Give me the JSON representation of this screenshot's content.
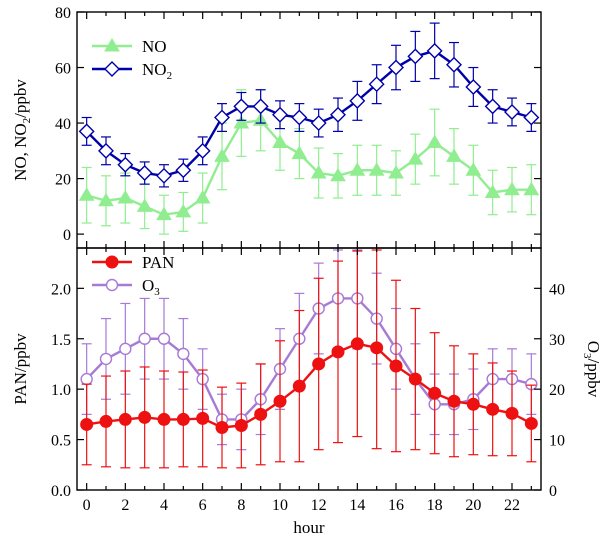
{
  "chart_data": [
    {
      "type": "line",
      "panel": "top",
      "ylabel": "NO, NO2/ppbv",
      "ylabel_parts": [
        "NO, NO",
        "2",
        "/ppbv"
      ],
      "ylim": [
        -5,
        80
      ],
      "yticks": [
        0,
        20,
        40,
        60,
        80
      ],
      "xlim": [
        -0.5,
        23.5
      ],
      "grid": false,
      "legend_position": "top-left",
      "x": [
        0,
        1,
        2,
        3,
        4,
        5,
        6,
        7,
        8,
        9,
        10,
        11,
        12,
        13,
        14,
        15,
        16,
        17,
        18,
        19,
        20,
        21,
        22,
        23
      ],
      "series": [
        {
          "name": "NO",
          "name_parts": [
            "NO",
            ""
          ],
          "color": "#90ee90",
          "marker": "triangle",
          "values": [
            14,
            12,
            13,
            10,
            7,
            8,
            13,
            28,
            40,
            41,
            33,
            29,
            22,
            21,
            23,
            23,
            22,
            27,
            33,
            28,
            23,
            15,
            16,
            16
          ],
          "error": [
            10,
            9,
            9,
            8,
            7,
            7,
            9,
            12,
            12,
            11,
            10,
            9,
            9,
            8,
            9,
            9,
            8,
            9,
            12,
            10,
            9,
            8,
            8,
            9
          ]
        },
        {
          "name": "NO2",
          "name_parts": [
            "NO",
            "2"
          ],
          "color": "#0000aa",
          "marker": "diamond",
          "values": [
            37,
            30,
            25,
            22,
            21,
            23,
            30,
            42,
            46,
            46,
            43,
            42,
            40,
            43,
            48,
            54,
            60,
            64,
            66,
            61,
            53,
            46,
            44,
            42
          ],
          "error": [
            5,
            5,
            4,
            4,
            4,
            4,
            5,
            5,
            5,
            6,
            5,
            5,
            5,
            6,
            7,
            7,
            8,
            9,
            10,
            8,
            7,
            6,
            5,
            5
          ]
        }
      ]
    },
    {
      "type": "line",
      "panel": "bottom",
      "xlabel": "hour",
      "ylabel": "PAN/ppbv",
      "ylabel_right": "O3/ppbv",
      "ylabel_right_parts": [
        "O",
        "3",
        "/ppbv"
      ],
      "ylim": [
        0,
        2.4
      ],
      "yticks": [
        0.0,
        0.5,
        1.0,
        1.5,
        2.0
      ],
      "ylim_right": [
        0,
        48
      ],
      "yticks_right": [
        0,
        10,
        20,
        30,
        40
      ],
      "xlim": [
        -0.5,
        23.5
      ],
      "xticks": [
        0,
        2,
        4,
        6,
        8,
        10,
        12,
        14,
        16,
        18,
        20,
        22
      ],
      "grid": false,
      "legend_position": "top-left",
      "x": [
        0,
        1,
        2,
        3,
        4,
        5,
        6,
        7,
        8,
        9,
        10,
        11,
        12,
        13,
        14,
        15,
        16,
        17,
        18,
        19,
        20,
        21,
        22,
        23
      ],
      "series": [
        {
          "name": "PAN",
          "name_parts": [
            "PAN",
            ""
          ],
          "axis": "left",
          "color": "#ee1111",
          "marker": "filled-circle",
          "values": [
            0.65,
            0.68,
            0.7,
            0.72,
            0.7,
            0.7,
            0.71,
            0.62,
            0.64,
            0.75,
            0.88,
            1.03,
            1.25,
            1.37,
            1.45,
            1.41,
            1.23,
            1.1,
            0.96,
            0.88,
            0.85,
            0.8,
            0.76,
            0.66
          ],
          "error": [
            0.4,
            0.45,
            0.48,
            0.5,
            0.48,
            0.47,
            0.48,
            0.4,
            0.42,
            0.5,
            0.6,
            0.75,
            0.85,
            0.9,
            0.92,
            1.0,
            0.85,
            0.7,
            0.6,
            0.55,
            0.5,
            0.46,
            0.42,
            0.38
          ]
        },
        {
          "name": "O3",
          "name_parts": [
            "O",
            "3"
          ],
          "axis": "right",
          "color": "#a77ad6",
          "marker": "open-circle",
          "values": [
            22,
            26,
            28,
            30,
            30,
            27,
            22,
            14,
            14,
            18,
            24,
            30,
            36,
            38,
            38,
            34,
            28,
            22,
            17,
            17,
            18,
            22,
            22,
            21
          ],
          "error": [
            7,
            8,
            9,
            8,
            8,
            7,
            6,
            5,
            6,
            7,
            8,
            9,
            9,
            10,
            10,
            9,
            8,
            7,
            6,
            6,
            6,
            6,
            6,
            6
          ]
        }
      ]
    }
  ]
}
